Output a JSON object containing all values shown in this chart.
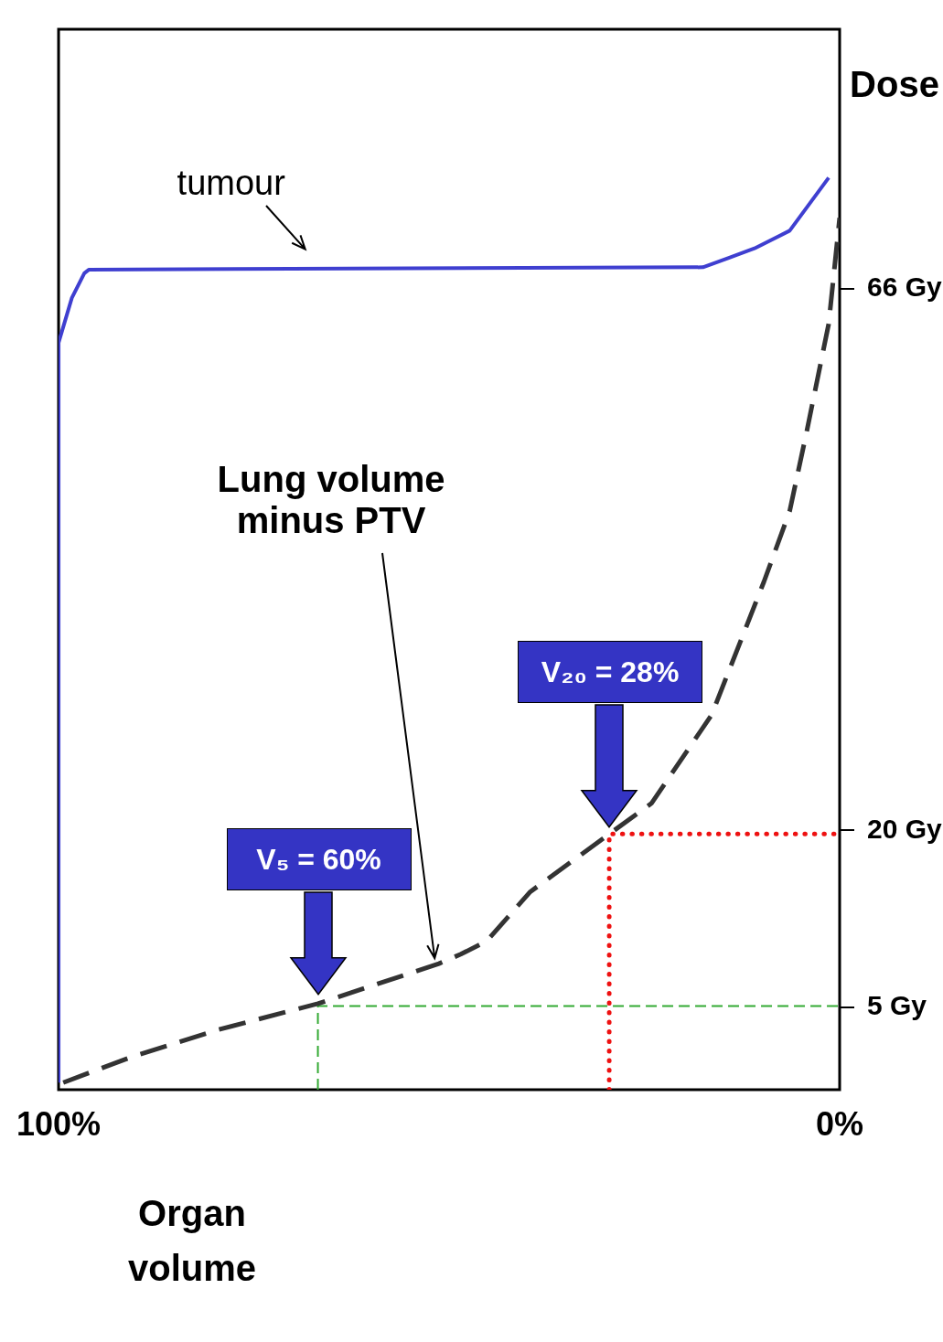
{
  "chart_data": {
    "type": "line",
    "xlabel": "Organ\nvolume",
    "ylabel": "Dose",
    "xlim": [
      100,
      0
    ],
    "ylim": [
      -2,
      88
    ],
    "xticks": [
      {
        "value": 100,
        "label": "100%"
      },
      {
        "value": 0,
        "label": "0%"
      }
    ],
    "yticks": [
      {
        "value": 5,
        "label": "5 Gy"
      },
      {
        "value": 20,
        "label": "20 Gy"
      },
      {
        "value": 66,
        "label": "66 Gy"
      }
    ],
    "series": [
      {
        "color": "#3f3fd0",
        "line_style": "solid",
        "x": [
          100,
          100,
          98.3,
          96.7,
          96.1,
          17.5,
          14.2,
          10.9,
          6.4,
          1.4
        ],
        "values": [
          -1.4,
          61.4,
          65.2,
          67.3,
          67.6,
          67.8,
          68.6,
          69.4,
          70.9,
          75.4
        ]
      },
      {
        "color": "#333333",
        "line_style": "dashed",
        "x": [
          99.4,
          90.6,
          79.5,
          66.8,
          51.3,
          48.5,
          45.2,
          39.6,
          29.5,
          24.1,
          16.4,
          9.7,
          6.4,
          4.2,
          1.4,
          0
        ],
        "values": [
          -1.4,
          0.8,
          3.1,
          5.3,
          8.7,
          9.5,
          10.6,
          14.8,
          19.7,
          22.3,
          29.8,
          41.1,
          47.1,
          53.9,
          63,
          72
        ]
      },
      {
        "color": "#33aa33",
        "line_style": "dashed",
        "x": [
          66.8,
          66.8,
          0
        ],
        "values": [
          -2,
          5.1,
          5.1
        ]
      },
      {
        "color": "#ee1111",
        "line_style": "dotted",
        "x": [
          29.5,
          29.5,
          0
        ],
        "values": [
          -2,
          19.7,
          19.7
        ]
      }
    ],
    "annotations": [
      "tumour",
      "Lung volume\nminus PTV",
      "V₅ = 60%",
      "V₂₀ = 28%"
    ],
    "grid": false,
    "legend": false,
    "marker": "none"
  }
}
